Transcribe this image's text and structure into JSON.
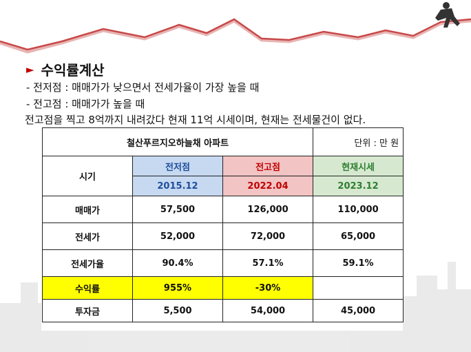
{
  "title": "수익률계산",
  "lines": [
    "- 전저점 : 매매가가 낮으면서 전세가율이 가장 높을 때",
    "- 전고점 : 매매가가 높을 때",
    "전고점을 찍고 8억까지 내려갔다 현재 11억 시세이며, 현재는 전세물건이 없다."
  ],
  "table": {
    "apartment": "철산푸르지오하늘채 아파트",
    "unit": "단위 : 만 원",
    "period_label": "시기",
    "columns": [
      {
        "label": "전저점",
        "date": "2015.12"
      },
      {
        "label": "전고점",
        "date": "2022.04"
      },
      {
        "label": "현재시세",
        "date": "2023.12"
      }
    ],
    "rows": [
      {
        "label": "매매가",
        "values": [
          "57,500",
          "126,000",
          "110,000"
        ]
      },
      {
        "label": "전세가",
        "values": [
          "52,000",
          "72,000",
          "65,000"
        ]
      },
      {
        "label": "전세가율",
        "values": [
          "90.4%",
          "57.1%",
          "59.1%"
        ]
      },
      {
        "label": "수익률",
        "values": [
          "955%",
          "-30%",
          ""
        ]
      },
      {
        "label": "투자금",
        "values": [
          "5,500",
          "54,000",
          "45,000"
        ]
      }
    ]
  },
  "colors": {
    "accent": "#c00000",
    "highlight": "#ffff00"
  }
}
